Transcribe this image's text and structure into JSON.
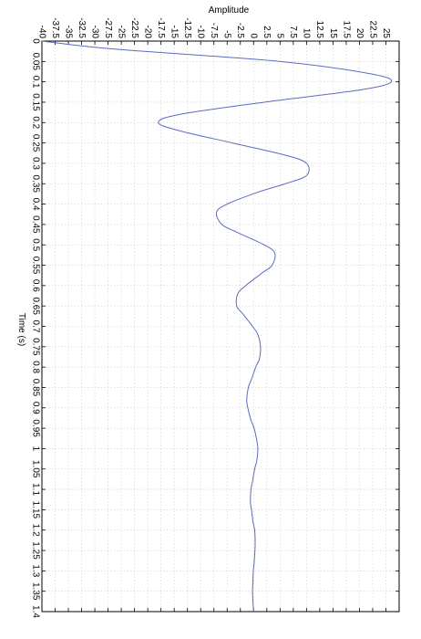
{
  "chart_data": {
    "type": "line",
    "orientation": "rotated-90",
    "title": "",
    "amplitude_axis_label": "Amplitude",
    "time_axis_label": "Time (s)",
    "amplitude_range": [
      -40,
      27.5
    ],
    "time_range": [
      0,
      1.4
    ],
    "amplitude_ticks": [
      "-40",
      "-37.5",
      "-35",
      "-32.5",
      "-30",
      "-27.5",
      "-25",
      "-22.5",
      "-20",
      "-17.5",
      "-15",
      "-12.5",
      "-10",
      "-7.5",
      "-5",
      "-2.5",
      "0",
      "2.5",
      "5",
      "7.5",
      "10",
      "12.5",
      "15",
      "17.5",
      "20",
      "22.5",
      "25"
    ],
    "time_ticks": [
      "0",
      "0.05",
      "0.1",
      "0.15",
      "0.2",
      "0.25",
      "0.3",
      "0.35",
      "0.4",
      "0.45",
      "0.5",
      "0.55",
      "0.6",
      "0.65",
      "0.7",
      "0.75",
      "0.8",
      "0.85",
      "0.9",
      "0.95",
      "1",
      "1.05",
      "1.1",
      "1.15",
      "1.2",
      "1.25",
      "1.3",
      "1.35",
      "1.4"
    ],
    "grid": true,
    "legend": "none",
    "line_color": "#5b6bbf",
    "series": [
      {
        "time": [
          0.0,
          0.02,
          0.05,
          0.08,
          0.1,
          0.12,
          0.15,
          0.18,
          0.2,
          0.22,
          0.25,
          0.28,
          0.3,
          0.33,
          0.35,
          0.37,
          0.4,
          0.42,
          0.45,
          0.47,
          0.5,
          0.52,
          0.55,
          0.57,
          0.6,
          0.62,
          0.65,
          0.67,
          0.7,
          0.72,
          0.75,
          0.78,
          0.8,
          0.83,
          0.85,
          0.88,
          0.9,
          0.93,
          0.95,
          0.98,
          1.0,
          1.03,
          1.05,
          1.08,
          1.1,
          1.13,
          1.15,
          1.18,
          1.2,
          1.23,
          1.25,
          1.28,
          1.3,
          1.33,
          1.35,
          1.38,
          1.4
        ],
        "amplitude": [
          -40,
          -26,
          5,
          22,
          26,
          20,
          2,
          -14,
          -18,
          -14,
          -4,
          6,
          10,
          10,
          6,
          1,
          -5,
          -7,
          -6,
          -3,
          2,
          4,
          3.5,
          1.5,
          -1.5,
          -3,
          -3.2,
          -2,
          -0.2,
          0.8,
          1.3,
          1.1,
          0.4,
          -0.4,
          -1.0,
          -1.3,
          -1.1,
          -0.5,
          0.1,
          0.6,
          0.8,
          0.6,
          0.2,
          -0.2,
          -0.5,
          -0.6,
          -0.4,
          -0.1,
          0.2,
          0.3,
          0.25,
          0.1,
          -0.05,
          -0.15,
          -0.2,
          -0.1,
          0.0
        ]
      }
    ]
  }
}
